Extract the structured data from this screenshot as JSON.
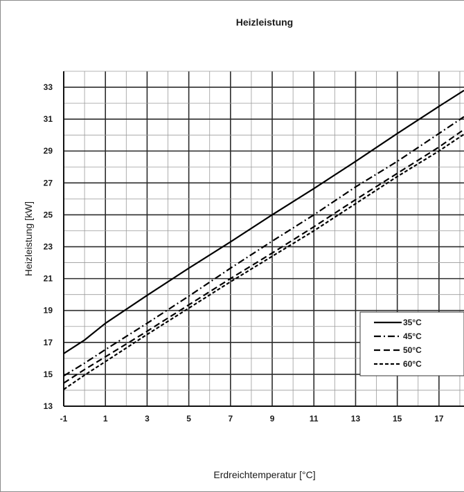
{
  "chart_data": {
    "type": "line",
    "title": "Heizleistung",
    "xlabel": "Erdreichtemperatur [°C]",
    "ylabel": "Heizleistung [kW]",
    "xlim": [
      -1,
      18.2
    ],
    "ylim": [
      13,
      34
    ],
    "xticks": [
      "-1",
      "1",
      "3",
      "5",
      "7",
      "9",
      "11",
      "13",
      "15",
      "17"
    ],
    "yticks": [
      "13",
      "15",
      "17",
      "19",
      "21",
      "23",
      "25",
      "27",
      "29",
      "31",
      "33"
    ],
    "grid": true,
    "legend_position": "bottom-right",
    "series": [
      {
        "name": "35°C",
        "dash": "solid",
        "color": "#000000",
        "x": [
          -1,
          0,
          1,
          3,
          5,
          7,
          9,
          11,
          13,
          15,
          17,
          18.2
        ],
        "y": [
          16.3,
          17.15,
          18.2,
          19.95,
          21.65,
          23.3,
          25.0,
          26.65,
          28.35,
          30.1,
          31.8,
          32.8
        ]
      },
      {
        "name": "45°C",
        "dash": "dashdot",
        "color": "#000000",
        "x": [
          -1,
          0,
          1,
          3,
          5,
          7,
          9,
          11,
          13,
          15,
          17,
          18.2
        ],
        "y": [
          14.9,
          15.7,
          16.55,
          18.2,
          19.9,
          21.65,
          23.35,
          25.0,
          26.75,
          28.35,
          30.1,
          31.15
        ]
      },
      {
        "name": "50°C",
        "dash": "dash",
        "color": "#000000",
        "x": [
          -1,
          0,
          1,
          3,
          5,
          7,
          9,
          11,
          13,
          15,
          17,
          18.2
        ],
        "y": [
          14.45,
          15.3,
          16.1,
          17.7,
          19.35,
          21.0,
          22.6,
          24.25,
          25.95,
          27.6,
          29.25,
          30.35
        ]
      },
      {
        "name": "60°C",
        "dash": "shortdash",
        "color": "#000000",
        "x": [
          -1,
          0,
          1,
          3,
          5,
          7,
          9,
          11,
          13,
          15,
          17,
          18.2
        ],
        "y": [
          14.05,
          14.95,
          15.8,
          17.5,
          19.15,
          20.8,
          22.4,
          24.0,
          25.7,
          27.4,
          29.0,
          30.05
        ]
      }
    ]
  }
}
